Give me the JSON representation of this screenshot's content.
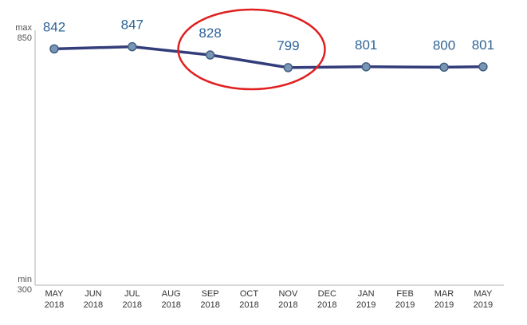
{
  "chart_data": {
    "type": "line",
    "x": [
      "MAY 2018",
      "JUN 2018",
      "JUL 2018",
      "AUG 2018",
      "SEP 2018",
      "OCT 2018",
      "NOV 2018",
      "DEC 2018",
      "JAN 2019",
      "FEB 2019",
      "MAR 2019",
      "MAY 2019"
    ],
    "tick_labels": [
      {
        "month": "MAY",
        "year": "2018"
      },
      {
        "month": "JUN",
        "year": "2018"
      },
      {
        "month": "JUL",
        "year": "2018"
      },
      {
        "month": "AUG",
        "year": "2018"
      },
      {
        "month": "SEP",
        "year": "2018"
      },
      {
        "month": "OCT",
        "year": "2018"
      },
      {
        "month": "NOV",
        "year": "2018"
      },
      {
        "month": "DEC",
        "year": "2018"
      },
      {
        "month": "JAN",
        "year": "2019"
      },
      {
        "month": "FEB",
        "year": "2019"
      },
      {
        "month": "MAR",
        "year": "2019"
      },
      {
        "month": "MAY",
        "year": "2019"
      }
    ],
    "series": [
      {
        "points": [
          {
            "x": "MAY 2018",
            "y": 842,
            "label": "842"
          },
          {
            "x": "JUL 2018",
            "y": 847,
            "label": "847"
          },
          {
            "x": "SEP 2018",
            "y": 828,
            "label": "828"
          },
          {
            "x": "NOV 2018",
            "y": 799,
            "label": "799"
          },
          {
            "x": "JAN 2019",
            "y": 801,
            "label": "801"
          },
          {
            "x": "MAR 2019",
            "y": 800,
            "label": "800"
          },
          {
            "x": "MAY 2019",
            "y": 801,
            "label": "801"
          }
        ]
      }
    ],
    "y_axis": {
      "max_word": "max",
      "max_value": "850",
      "min_word": "min",
      "min_value": "300"
    },
    "ylim": [
      300,
      850
    ],
    "grid": false,
    "annotation": {
      "shape": "ellipse",
      "color": "#e02020",
      "around": [
        "SEP 2018",
        "NOV 2018"
      ]
    },
    "colors": {
      "line": "#333d7a",
      "marker_fill": "#7a96b4",
      "marker_stroke": "#3f5f82",
      "data_label": "#2e6496",
      "axis": "#b0b0b0"
    }
  }
}
